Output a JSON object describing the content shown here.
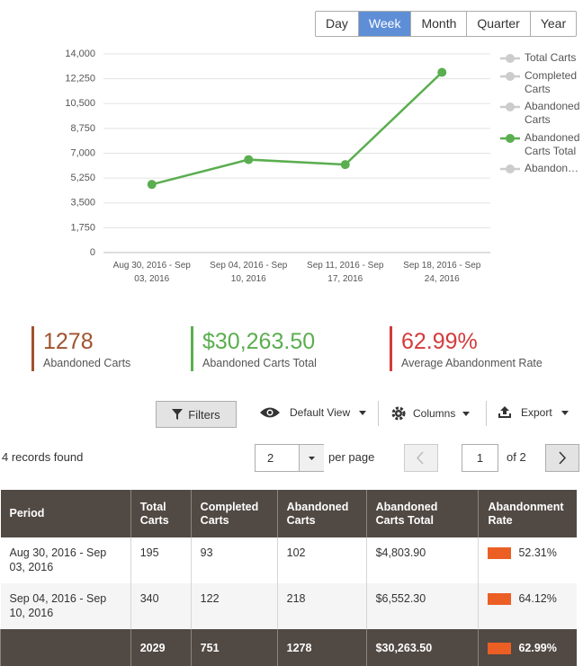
{
  "tabs": [
    "Day",
    "Week",
    "Month",
    "Quarter",
    "Year"
  ],
  "active_tab": 1,
  "chart_data": {
    "type": "line",
    "categories": [
      "Aug 30, 2016 - Sep 03, 2016",
      "Sep 04, 2016 - Sep 10, 2016",
      "Sep 11, 2016 - Sep 17, 2016",
      "Sep 18, 2016 - Sep 24, 2016"
    ],
    "series": [
      {
        "name": "Total Carts",
        "color": "#cccccc",
        "values": [
          null,
          null,
          null,
          null
        ]
      },
      {
        "name": "Completed Carts",
        "color": "#cccccc",
        "values": [
          null,
          null,
          null,
          null
        ]
      },
      {
        "name": "Abandoned Carts",
        "color": "#cccccc",
        "values": [
          null,
          null,
          null,
          null
        ]
      },
      {
        "name": "Abandoned Carts Total",
        "color": "#5aae4f",
        "values": [
          4803.9,
          6552.3,
          6200,
          12700
        ]
      },
      {
        "name": "Abandon…",
        "color": "#cccccc",
        "values": [
          null,
          null,
          null,
          null
        ]
      }
    ],
    "ylim": [
      0,
      14000
    ],
    "yticks": [
      0,
      {
        "value": 1750,
        "label": "1,750"
      },
      {
        "value": 3500,
        "label": "3,500"
      },
      {
        "value": 5250,
        "label": "5,250"
      },
      {
        "value": 7000,
        "label": "7,000"
      },
      {
        "value": 8750,
        "label": "8,750"
      },
      {
        "value": 10500,
        "label": "10,500"
      },
      {
        "value": 12250,
        "label": "12,250"
      },
      {
        "value": 14000,
        "label": "14,000"
      }
    ],
    "grid": true,
    "legend": "right"
  },
  "stats": [
    {
      "value": "1278",
      "label": "Abandoned Carts"
    },
    {
      "value": "$30,263.50",
      "label": "Abandoned Carts Total"
    },
    {
      "value": "62.99%",
      "label": "Average Abandonment Rate"
    }
  ],
  "toolbar": {
    "filters": "Filters",
    "view": "Default View",
    "columns": "Columns",
    "export": "Export"
  },
  "pager": {
    "records": "4 records found",
    "per_page_value": "2",
    "per_page": "per page",
    "page": "1",
    "of": "of 2"
  },
  "table": {
    "header": [
      "Period",
      "Total Carts",
      "Completed Carts",
      "Abandoned Carts",
      "Abandoned Carts Total",
      "Abandonment Rate"
    ],
    "rows": [
      [
        "Aug 30, 2016 - Sep 03, 2016",
        "195",
        "93",
        "102",
        "$4,803.90",
        "52.31%"
      ],
      [
        "Sep 04, 2016 - Sep 10, 2016",
        "340",
        "122",
        "218",
        "$6,552.30",
        "64.12%"
      ]
    ],
    "totals": [
      "2029",
      "751",
      "1278",
      "$30,263.50",
      "62.99%"
    ]
  }
}
